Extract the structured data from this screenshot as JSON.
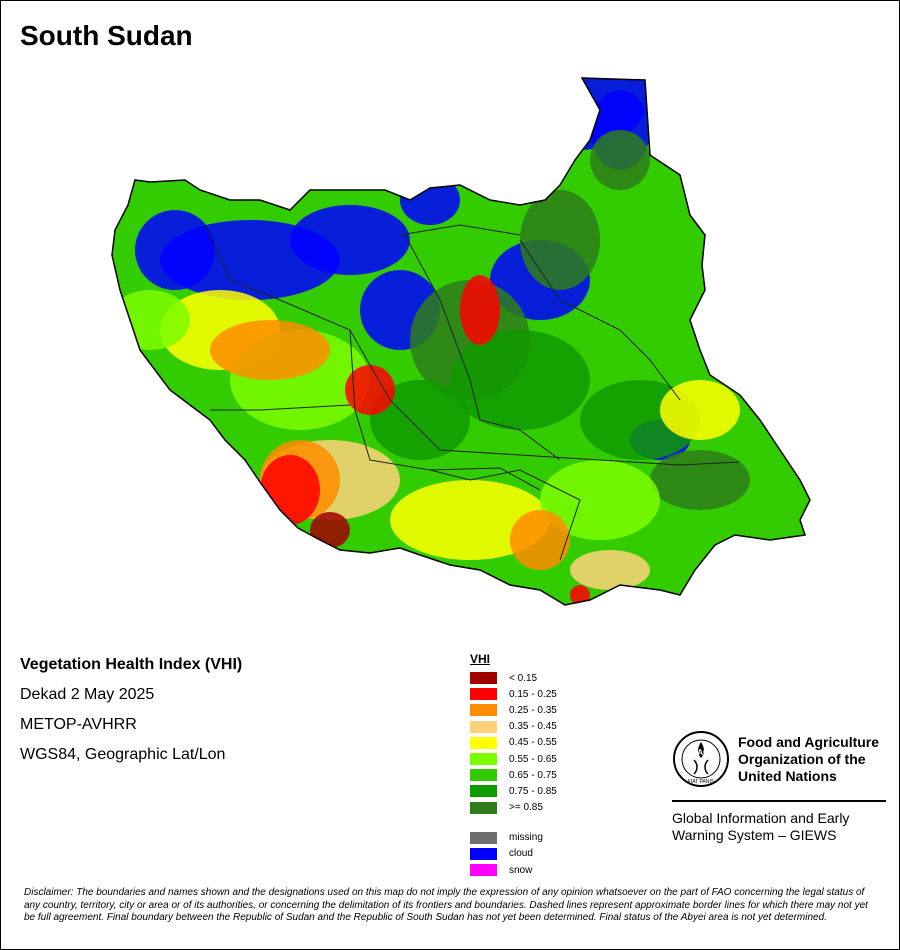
{
  "title": "South Sudan",
  "map_info": {
    "index_name": "Vegetation Health Index (VHI)",
    "dekad": "Dekad 2 May 2025",
    "sensor": "METOP-AVHRR",
    "projection": "WGS84, Geographic Lat/Lon"
  },
  "legend": {
    "title": "VHI",
    "classes": [
      {
        "label": "< 0.15",
        "color": "#a00000"
      },
      {
        "label": "0.15 - 0.25",
        "color": "#ff0000"
      },
      {
        "label": "0.25 - 0.35",
        "color": "#ff8c00"
      },
      {
        "label": "0.35 - 0.45",
        "color": "#ffd27a"
      },
      {
        "label": "0.45 - 0.55",
        "color": "#ffff00"
      },
      {
        "label": "0.55 - 0.65",
        "color": "#7cfc00"
      },
      {
        "label": "0.65 - 0.75",
        "color": "#33cc00"
      },
      {
        "label": "0.75 - 0.85",
        "color": "#119900"
      },
      {
        "label": ">= 0.85",
        "color": "#2e7d1a"
      }
    ],
    "special": [
      {
        "label": "missing",
        "color": "#6e6e6e"
      },
      {
        "label": "cloud",
        "color": "#0000ff"
      },
      {
        "label": "snow",
        "color": "#ff00ff"
      }
    ]
  },
  "organization": {
    "name_line1": "Food and Agriculture",
    "name_line2": "Organization of the",
    "name_line3": "United Nations",
    "logo_text": "FAO",
    "logo_ring_text": "FIAT PANIS",
    "system_line1": "Global Information and Early",
    "system_line2": "Warning System – GIEWS"
  },
  "disclaimer": "Disclaimer: The boundaries and names shown and the designations used on this map do not imply the expression of any opinion whatsoever on the part of FAO concerning the legal status of any country, territory, city or area or of its authorities, or concerning the delimitation of its frontiers and boundaries. Dashed lines represent approximate border lines for which there may not yet be full agreement.  Final boundary between the Republic of Sudan and the Republic of South Sudan has not yet been determined. Final status of the Abyei area is not yet determined."
}
